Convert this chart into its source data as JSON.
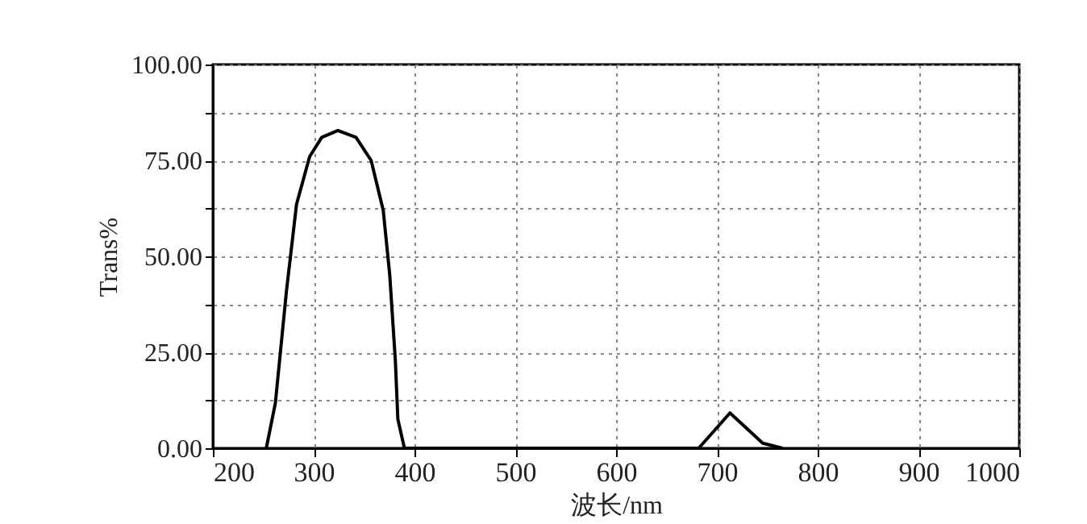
{
  "chart_data": {
    "type": "line",
    "xlabel": "波长/nm",
    "ylabel": "Trans%",
    "x": [
      253,
      262,
      273,
      283,
      296,
      308,
      324,
      342,
      357,
      369,
      375.5,
      381,
      383.5,
      390,
      682,
      713,
      745.5,
      765
    ],
    "series": [
      {
        "color": "#000000",
        "values": [
          0,
          11.8,
          41,
          63.6,
          76,
          81,
          82.8,
          81,
          75,
          62,
          45,
          23,
          7.6,
          0,
          0,
          9.2,
          1.3,
          0
        ]
      }
    ],
    "xlim": [
      200,
      1000
    ],
    "xticks": [
      200,
      300,
      400,
      500,
      600,
      700,
      800,
      900,
      1000
    ],
    "ylim": [
      0,
      100
    ],
    "yticks": [
      {
        "value": 0,
        "label": "0.00"
      },
      {
        "value": 12.5,
        "label": null
      },
      {
        "value": 25,
        "label": "25.00"
      },
      {
        "value": 37.5,
        "label": null
      },
      {
        "value": 50,
        "label": "50.00"
      },
      {
        "value": 62.5,
        "label": null
      },
      {
        "value": 75,
        "label": "75.00"
      },
      {
        "value": 87.5,
        "label": null
      },
      {
        "value": 100,
        "label": "100.00"
      }
    ],
    "grid": true,
    "line_style": "solid",
    "marker": "none"
  }
}
